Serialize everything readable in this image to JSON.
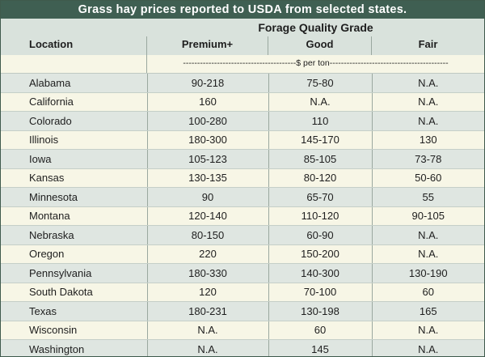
{
  "title": "Grass hay prices reported to USDA from selected states.",
  "header": {
    "group": "Forage Quality Grade",
    "location": "Location",
    "columns": [
      "Premium+",
      "Good",
      "Fair"
    ],
    "units": "----------------------------------------$ per ton------------------------------------------"
  },
  "rows": [
    {
      "location": "Alabama",
      "premium": "90-218",
      "good": "75-80",
      "fair": "N.A."
    },
    {
      "location": "California",
      "premium": "160",
      "good": "N.A.",
      "fair": "N.A."
    },
    {
      "location": "Colorado",
      "premium": "100-280",
      "good": "110",
      "fair": "N.A."
    },
    {
      "location": "Illinois",
      "premium": "180-300",
      "good": "145-170",
      "fair": "130"
    },
    {
      "location": "Iowa",
      "premium": "105-123",
      "good": "85-105",
      "fair": "73-78"
    },
    {
      "location": "Kansas",
      "premium": "130-135",
      "good": "80-120",
      "fair": "50-60"
    },
    {
      "location": "Minnesota",
      "premium": "90",
      "good": "65-70",
      "fair": "55"
    },
    {
      "location": "Montana",
      "premium": "120-140",
      "good": "110-120",
      "fair": "90-105"
    },
    {
      "location": "Nebraska",
      "premium": "80-150",
      "good": "60-90",
      "fair": "N.A."
    },
    {
      "location": "Oregon",
      "premium": "220",
      "good": "150-200",
      "fair": "N.A."
    },
    {
      "location": "Pennsylvania",
      "premium": "180-330",
      "good": "140-300",
      "fair": "130-190"
    },
    {
      "location": "South Dakota",
      "premium": "120",
      "good": "70-100",
      "fair": "60"
    },
    {
      "location": "Texas",
      "premium": "180-231",
      "good": "130-198",
      "fair": "165"
    },
    {
      "location": "Wisconsin",
      "premium": "N.A.",
      "good": "60",
      "fair": "N.A."
    },
    {
      "location": "Washington",
      "premium": "N.A.",
      "good": "145",
      "fair": "N.A."
    }
  ]
}
